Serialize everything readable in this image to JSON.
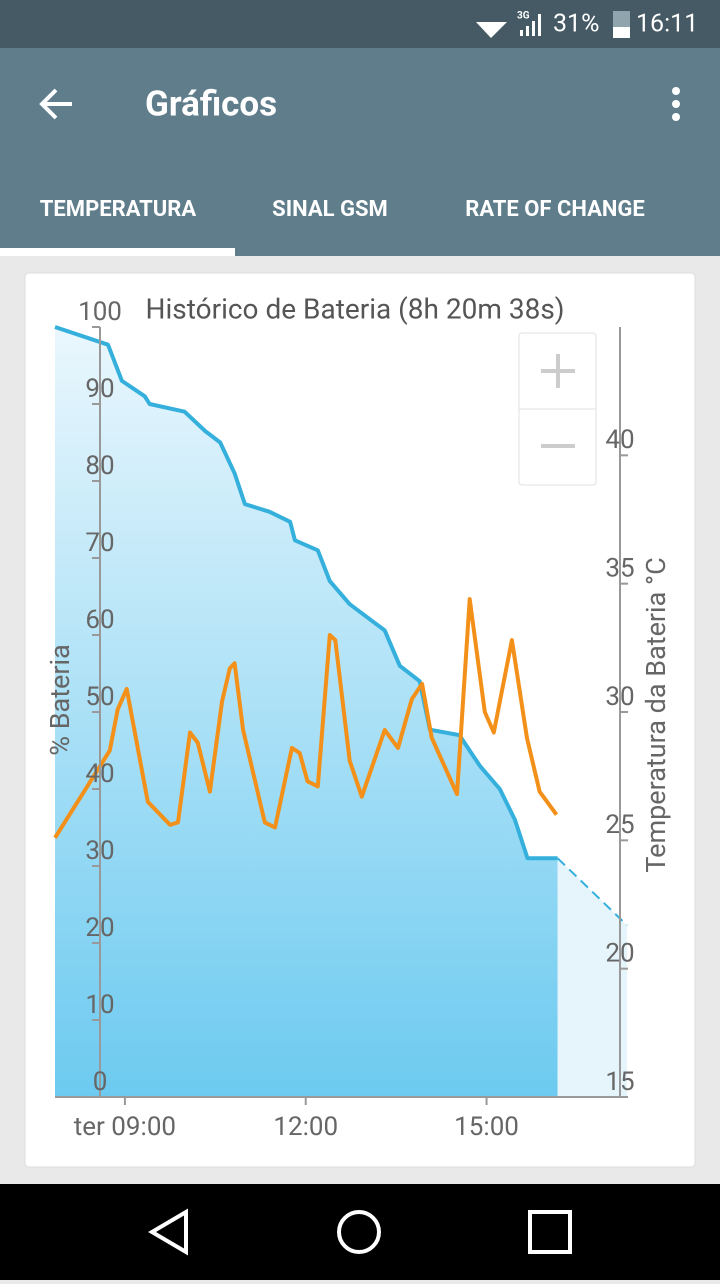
{
  "status_bar": {
    "network": "3G",
    "battery": "31%",
    "time": "16:11"
  },
  "app_bar": {
    "title": "Gráficos"
  },
  "tabs": [
    "TEMPERATURA",
    "SINAL GSM",
    "RATE OF CHANGE"
  ],
  "chart_data": {
    "type": "line",
    "title": "Histórico de Bateria (8h 20m 38s)",
    "y_label": "% Bateria",
    "y2_label": "Temperatura da Bateria °C",
    "xlim": [
      7.84,
      17.33
    ],
    "xticks": [
      {
        "value": 9,
        "label": "ter 09:00"
      },
      {
        "value": 12,
        "label": "12:00"
      },
      {
        "value": 15,
        "label": "15:00"
      }
    ],
    "ylim": [
      0,
      100
    ],
    "yticks": [
      0,
      10,
      20,
      30,
      40,
      50,
      60,
      70,
      80,
      90,
      100
    ],
    "y2lim": [
      15,
      45
    ],
    "y2ticks": [
      15,
      20,
      25,
      30,
      35,
      40
    ],
    "series": [
      {
        "color": "#35b0dc",
        "fill": true,
        "dashed": false,
        "x": [
          7.84,
          8.72,
          8.95,
          9.33,
          9.41,
          9.99,
          10.33,
          10.58,
          10.82,
          10.99,
          11.4,
          11.74,
          11.82,
          12.2,
          12.4,
          12.73,
          13.31,
          13.56,
          13.89,
          14.06,
          14.55,
          14.89,
          15.22,
          15.47,
          15.68,
          16.18
        ],
        "values": [
          100,
          97.7,
          93,
          91,
          90,
          89,
          86.5,
          85,
          81,
          77,
          76,
          74.7,
          72.3,
          71,
          67,
          64,
          60.6,
          56,
          54,
          47.7,
          47,
          43,
          40,
          36,
          31,
          31
        ]
      },
      {
        "color": "#35b0dc",
        "fill": true,
        "dashed": true,
        "x": [
          16.18,
          17.33
        ],
        "values": [
          31,
          22.3
        ]
      },
      {
        "color": "#f39019",
        "fill": false,
        "dashed": false,
        "axis": "y2",
        "x": [
          7.84,
          8.75,
          8.88,
          9.03,
          9.38,
          9.75,
          9.88,
          10.08,
          10.21,
          10.41,
          10.61,
          10.74,
          10.82,
          10.96,
          11.32,
          11.49,
          11.77,
          11.9,
          12.03,
          12.2,
          12.4,
          12.49,
          12.73,
          12.93,
          13.31,
          13.53,
          13.76,
          13.93,
          14.09,
          14.51,
          14.72,
          14.97,
          15.12,
          15.42,
          15.67,
          15.88,
          16.16
        ],
        "values": [
          25.1,
          28.5,
          30.1,
          30.9,
          26.5,
          25.6,
          25.7,
          29.2,
          28.8,
          26.9,
          30.4,
          31.7,
          31.9,
          29.3,
          25.7,
          25.5,
          28.6,
          28.4,
          27.3,
          27.1,
          33,
          32.8,
          28.1,
          26.7,
          29.3,
          28.6,
          30.5,
          31.1,
          29,
          26.8,
          34.4,
          30,
          29.2,
          32.8,
          29,
          26.9,
          26
        ]
      }
    ]
  }
}
